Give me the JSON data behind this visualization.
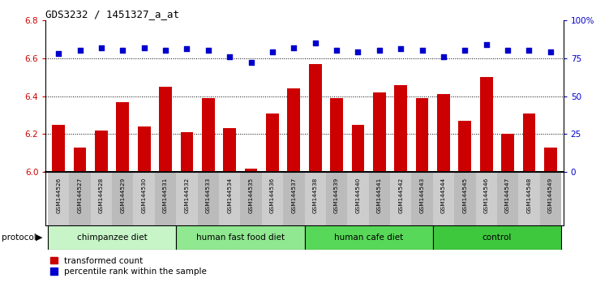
{
  "title": "GDS3232 / 1451327_a_at",
  "samples": [
    "GSM144526",
    "GSM144527",
    "GSM144528",
    "GSM144529",
    "GSM144530",
    "GSM144531",
    "GSM144532",
    "GSM144533",
    "GSM144534",
    "GSM144535",
    "GSM144536",
    "GSM144537",
    "GSM144538",
    "GSM144539",
    "GSM144540",
    "GSM144541",
    "GSM144542",
    "GSM144543",
    "GSM144544",
    "GSM144545",
    "GSM144546",
    "GSM144547",
    "GSM144548",
    "GSM144549"
  ],
  "red_values": [
    6.25,
    6.13,
    6.22,
    6.37,
    6.24,
    6.45,
    6.21,
    6.39,
    6.23,
    6.02,
    6.31,
    6.44,
    6.57,
    6.39,
    6.25,
    6.42,
    6.46,
    6.39,
    6.41,
    6.27,
    6.5,
    6.2,
    6.31,
    6.13
  ],
  "blue_values": [
    78,
    80,
    82,
    80,
    82,
    80,
    81,
    80,
    76,
    72,
    79,
    82,
    85,
    80,
    79,
    80,
    81,
    80,
    76,
    80,
    84,
    80,
    80,
    79
  ],
  "ylim_left": [
    6.0,
    6.8
  ],
  "ylim_right": [
    0,
    100
  ],
  "yticks_left": [
    6.0,
    6.2,
    6.4,
    6.6,
    6.8
  ],
  "yticks_right": [
    0,
    25,
    50,
    75,
    100
  ],
  "ytick_labels_right": [
    "0",
    "25",
    "50",
    "75",
    "100%"
  ],
  "groups": [
    {
      "label": "chimpanzee diet",
      "start": 0,
      "end": 5,
      "color": "#c8f5c8"
    },
    {
      "label": "human fast food diet",
      "start": 6,
      "end": 11,
      "color": "#90e890"
    },
    {
      "label": "human cafe diet",
      "start": 12,
      "end": 17,
      "color": "#58d858"
    },
    {
      "label": "control",
      "start": 18,
      "end": 23,
      "color": "#3ec83e"
    }
  ],
  "protocol_label": "protocol",
  "legend_red_label": "transformed count",
  "legend_blue_label": "percentile rank within the sample",
  "bar_color": "#cc0000",
  "dot_color": "#0000cc",
  "bg_color": "#ffffff",
  "tick_bg_even": "#cccccc",
  "tick_bg_odd": "#bbbbbb"
}
